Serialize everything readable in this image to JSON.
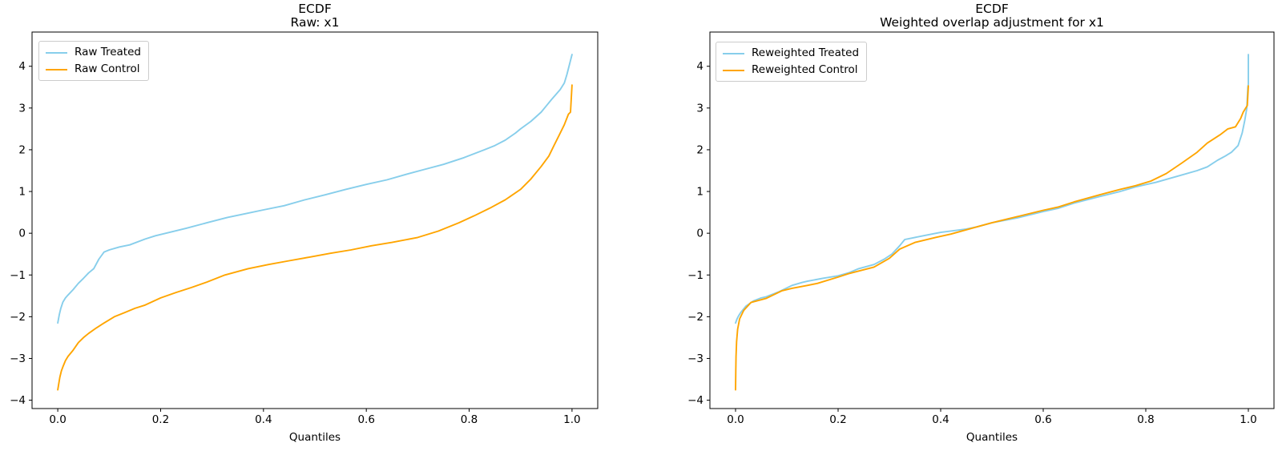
{
  "colors": {
    "treated": "#87CEEB",
    "control": "#FFA500",
    "axis": "#000000",
    "legend_border": "#cccccc"
  },
  "chart_data": [
    {
      "type": "line",
      "title_line1": "ECDF",
      "title_line2": "Raw: x1",
      "xlabel": "Quantiles",
      "xlim": [
        -0.05,
        1.05
      ],
      "ylim": [
        -4.2,
        4.82
      ],
      "grid": false,
      "legend_position": "upper-left",
      "xticks": [
        0.0,
        0.2,
        0.4,
        0.6,
        0.8,
        1.0
      ],
      "xtick_labels": [
        "0.0",
        "0.2",
        "0.4",
        "0.6",
        "0.8",
        "1.0"
      ],
      "yticks": [
        -4,
        -3,
        -2,
        -1,
        0,
        1,
        2,
        3,
        4
      ],
      "ytick_labels": [
        "−4",
        "−3",
        "−2",
        "−1",
        "0",
        "1",
        "2",
        "3",
        "4"
      ],
      "series": [
        {
          "name": "Raw Treated",
          "color": "#87CEEB",
          "x": [
            0,
            0.003,
            0.006,
            0.01,
            0.015,
            0.02,
            0.03,
            0.04,
            0.05,
            0.06,
            0.07,
            0.08,
            0.09,
            0.1,
            0.12,
            0.14,
            0.17,
            0.19,
            0.21,
            0.25,
            0.29,
            0.33,
            0.37,
            0.4,
            0.44,
            0.48,
            0.52,
            0.56,
            0.6,
            0.64,
            0.68,
            0.71,
            0.75,
            0.79,
            0.83,
            0.85,
            0.87,
            0.89,
            0.9,
            0.92,
            0.94,
            0.95,
            0.96,
            0.977,
            0.985,
            0.99,
            1.0
          ],
          "y": [
            -2.15,
            -1.95,
            -1.8,
            -1.65,
            -1.55,
            -1.48,
            -1.35,
            -1.2,
            -1.08,
            -0.95,
            -0.85,
            -0.62,
            -0.45,
            -0.4,
            -0.33,
            -0.28,
            -0.14,
            -0.06,
            0.0,
            0.12,
            0.25,
            0.38,
            0.48,
            0.56,
            0.66,
            0.8,
            0.92,
            1.05,
            1.17,
            1.28,
            1.42,
            1.52,
            1.65,
            1.81,
            2.0,
            2.1,
            2.23,
            2.4,
            2.5,
            2.68,
            2.9,
            3.05,
            3.2,
            3.44,
            3.6,
            3.8,
            4.28
          ]
        },
        {
          "name": "Raw Control",
          "color": "#FFA500",
          "x": [
            0,
            0.002,
            0.004,
            0.007,
            0.01,
            0.015,
            0.02,
            0.03,
            0.04,
            0.05,
            0.06,
            0.075,
            0.09,
            0.11,
            0.13,
            0.15,
            0.17,
            0.2,
            0.23,
            0.26,
            0.29,
            0.325,
            0.37,
            0.41,
            0.45,
            0.49,
            0.53,
            0.57,
            0.61,
            0.65,
            0.7,
            0.74,
            0.78,
            0.81,
            0.84,
            0.87,
            0.9,
            0.92,
            0.94,
            0.955,
            0.965,
            0.975,
            0.985,
            0.993,
            0.997,
            0.998,
            1.0
          ],
          "y": [
            -3.75,
            -3.6,
            -3.45,
            -3.3,
            -3.2,
            -3.05,
            -2.95,
            -2.8,
            -2.62,
            -2.5,
            -2.4,
            -2.27,
            -2.15,
            -2.0,
            -1.9,
            -1.8,
            -1.72,
            -1.55,
            -1.42,
            -1.3,
            -1.17,
            -1.0,
            -0.85,
            -0.75,
            -0.66,
            -0.57,
            -0.48,
            -0.4,
            -0.3,
            -0.22,
            -0.1,
            0.05,
            0.25,
            0.42,
            0.6,
            0.8,
            1.05,
            1.3,
            1.6,
            1.85,
            2.1,
            2.35,
            2.6,
            2.85,
            2.9,
            3.1,
            3.55
          ]
        }
      ]
    },
    {
      "type": "line",
      "title_line1": "ECDF",
      "title_line2": "Weighted overlap adjustment for x1",
      "xlabel": "Quantiles",
      "xlim": [
        -0.05,
        1.05
      ],
      "ylim": [
        -4.2,
        4.82
      ],
      "grid": false,
      "legend_position": "upper-left",
      "xticks": [
        0.0,
        0.2,
        0.4,
        0.6,
        0.8,
        1.0
      ],
      "xtick_labels": [
        "0.0",
        "0.2",
        "0.4",
        "0.6",
        "0.8",
        "1.0"
      ],
      "yticks": [
        -4,
        -3,
        -2,
        -1,
        0,
        1,
        2,
        3,
        4
      ],
      "ytick_labels": [
        "−4",
        "−3",
        "−2",
        "−1",
        "0",
        "1",
        "2",
        "3",
        "4"
      ],
      "series": [
        {
          "name": "Reweighted Treated",
          "color": "#87CEEB",
          "x": [
            0,
            0.003,
            0.006,
            0.01,
            0.02,
            0.035,
            0.05,
            0.06,
            0.085,
            0.11,
            0.13,
            0.14,
            0.17,
            0.2,
            0.22,
            0.24,
            0.27,
            0.29,
            0.305,
            0.32,
            0.33,
            0.37,
            0.4,
            0.45,
            0.47,
            0.5,
            0.55,
            0.6,
            0.63,
            0.66,
            0.71,
            0.75,
            0.78,
            0.82,
            0.86,
            0.9,
            0.92,
            0.94,
            0.955,
            0.967,
            0.98,
            0.988,
            0.993,
            0.997,
            0.999,
            1.0,
            1.0
          ],
          "y": [
            -2.15,
            -2.05,
            -1.98,
            -1.9,
            -1.75,
            -1.62,
            -1.55,
            -1.52,
            -1.4,
            -1.25,
            -1.18,
            -1.15,
            -1.08,
            -1.02,
            -0.95,
            -0.85,
            -0.75,
            -0.62,
            -0.5,
            -0.3,
            -0.15,
            -0.05,
            0.02,
            0.1,
            0.15,
            0.25,
            0.37,
            0.52,
            0.6,
            0.72,
            0.88,
            1.0,
            1.11,
            1.22,
            1.36,
            1.5,
            1.59,
            1.75,
            1.85,
            1.94,
            2.1,
            2.4,
            2.7,
            3.0,
            3.5,
            3.57,
            4.28
          ]
        },
        {
          "name": "Reweighted Control",
          "color": "#FFA500",
          "x": [
            0,
            0.0005,
            0.001,
            0.002,
            0.004,
            0.008,
            0.016,
            0.03,
            0.06,
            0.09,
            0.11,
            0.14,
            0.16,
            0.2,
            0.22,
            0.27,
            0.3,
            0.32,
            0.35,
            0.39,
            0.42,
            0.47,
            0.5,
            0.55,
            0.6,
            0.63,
            0.66,
            0.71,
            0.75,
            0.78,
            0.81,
            0.84,
            0.87,
            0.9,
            0.92,
            0.945,
            0.96,
            0.975,
            0.985,
            0.99,
            0.995,
            0.998,
            1.0
          ],
          "y": [
            -3.75,
            -3.3,
            -2.95,
            -2.6,
            -2.3,
            -2.05,
            -1.85,
            -1.66,
            -1.56,
            -1.38,
            -1.32,
            -1.25,
            -1.2,
            -1.05,
            -0.97,
            -0.81,
            -0.6,
            -0.38,
            -0.22,
            -0.1,
            -0.02,
            0.15,
            0.25,
            0.4,
            0.55,
            0.63,
            0.75,
            0.92,
            1.05,
            1.14,
            1.25,
            1.43,
            1.68,
            1.94,
            2.16,
            2.36,
            2.5,
            2.55,
            2.75,
            2.9,
            3.0,
            3.06,
            3.53
          ]
        }
      ]
    }
  ]
}
